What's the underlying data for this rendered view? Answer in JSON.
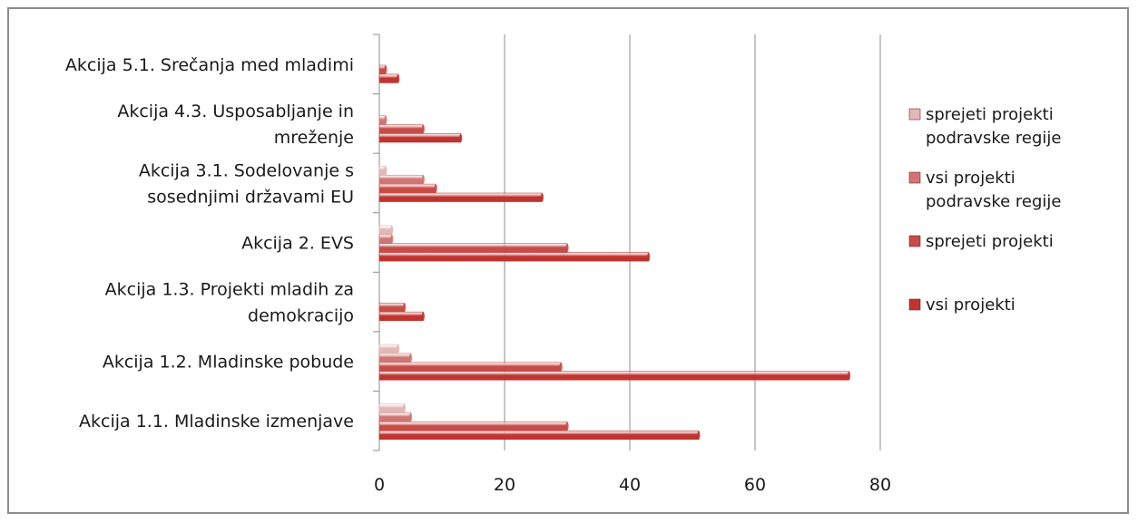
{
  "chart_data": {
    "type": "bar",
    "orientation": "horizontal",
    "title": "",
    "xlabel": "",
    "ylabel": "",
    "xlim": [
      0,
      80
    ],
    "xticks": [
      0,
      20,
      40,
      60,
      80
    ],
    "xtick_labels": [
      "0",
      "20",
      "40",
      "60",
      "80"
    ],
    "grid": "vertical",
    "legend_position": "right",
    "categories": [
      {
        "lines": [
          "Akcija 1.1. Mladinske izmenjave"
        ]
      },
      {
        "lines": [
          "Akcija 1.2. Mladinske pobude"
        ]
      },
      {
        "lines": [
          "Akcija 1.3. Projekti mladih za",
          "demokracijo"
        ]
      },
      {
        "lines": [
          "Akcija 2. EVS"
        ]
      },
      {
        "lines": [
          "Akcija 3.1. Sodelovanje s",
          "sosednjimi državami EU"
        ]
      },
      {
        "lines": [
          "Akcija 4.3. Usposabljanje in",
          "mreženje"
        ]
      },
      {
        "lines": [
          "Akcija 5.1. Srečanja med mladimi"
        ]
      }
    ],
    "series": [
      {
        "name": "vsi projekti",
        "color": "#c0332f",
        "values": [
          51,
          75,
          7,
          43,
          26,
          13,
          3
        ]
      },
      {
        "name": "sprejeti projekti",
        "color": "#c74b47",
        "values": [
          30,
          29,
          4,
          30,
          9,
          7,
          1
        ]
      },
      {
        "name": "vsi projekti podravske regije",
        "color": "#cf7573",
        "values": [
          5,
          5,
          0,
          2,
          7,
          1,
          0
        ]
      },
      {
        "name": "sprejeti projekti podravske regije",
        "color": "#e3b7b6",
        "values": [
          4,
          3,
          0,
          2,
          1,
          0,
          0
        ]
      }
    ],
    "legend": [
      {
        "lines": [
          "sprejeti projekti",
          "podravske regije"
        ],
        "color": "#e3b7b6"
      },
      {
        "lines": [
          "vsi projekti",
          "podravske regije"
        ],
        "color": "#cf7573"
      },
      {
        "lines": [
          "sprejeti projekti"
        ],
        "color": "#c74b47"
      },
      {
        "lines": [
          "vsi projekti"
        ],
        "color": "#c0332f"
      }
    ]
  }
}
